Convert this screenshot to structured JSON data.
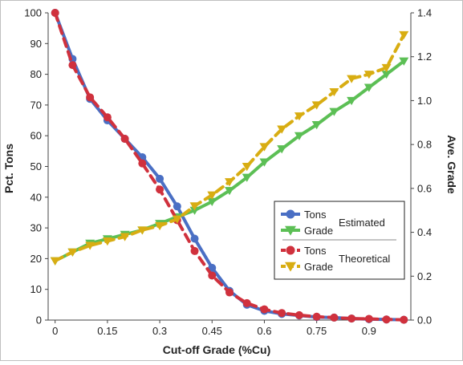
{
  "chart_data": {
    "type": "line",
    "title": "",
    "xlabel": "Cut-off Grade (%Cu)",
    "ylabel_left": "Pct. Tons",
    "ylabel_right": "Ave. Grade",
    "xlim": [
      -0.02,
      1.02
    ],
    "ylim_left": [
      0,
      100
    ],
    "ylim_right": [
      0,
      1.4
    ],
    "xticks": [
      "0",
      "0.15",
      "0.3",
      "0.45",
      "0.6",
      "0.75",
      "0.9"
    ],
    "xtick_values": [
      0,
      0.15,
      0.3,
      0.45,
      0.6,
      0.75,
      0.9
    ],
    "yticks_left": [
      "0",
      "10",
      "20",
      "30",
      "40",
      "50",
      "60",
      "70",
      "80",
      "90",
      "100"
    ],
    "yticks_right": [
      "0.0",
      "0.2",
      "0.4",
      "0.6",
      "0.8",
      "1.0",
      "1.2",
      "1.4"
    ],
    "grid": false,
    "legend": {
      "placement": "right-center",
      "groups": [
        {
          "label": "Estimated",
          "items": [
            "Tons",
            "Grade"
          ]
        },
        {
          "label": "Theoretical",
          "items": [
            "Tons",
            "Grade"
          ]
        }
      ]
    },
    "x": [
      0,
      0.05,
      0.1,
      0.15,
      0.2,
      0.25,
      0.3,
      0.35,
      0.4,
      0.45,
      0.5,
      0.55,
      0.6,
      0.65,
      0.7,
      0.75,
      0.8,
      0.85,
      0.9,
      0.95,
      1.0
    ],
    "series": [
      {
        "name": "Tons",
        "group": "Estimated",
        "axis": "left",
        "color": "#4a6fc4",
        "marker": "circle",
        "dash": false,
        "values": [
          100,
          85,
          72,
          65,
          59,
          53,
          46,
          37,
          26.5,
          17,
          9.5,
          5,
          3,
          2,
          1.5,
          1,
          0.8,
          0.5,
          0.3,
          0.2,
          0.1
        ]
      },
      {
        "name": "Grade",
        "group": "Estimated",
        "axis": "right",
        "color": "#5cbf55",
        "marker": "triangle",
        "dash": false,
        "values": [
          0.27,
          0.31,
          0.35,
          0.37,
          0.39,
          0.41,
          0.44,
          0.47,
          0.5,
          0.54,
          0.59,
          0.65,
          0.72,
          0.78,
          0.84,
          0.89,
          0.95,
          1.0,
          1.06,
          1.12,
          1.18
        ]
      },
      {
        "name": "Tons",
        "group": "Theoretical",
        "axis": "left",
        "color": "#d0313d",
        "marker": "circle",
        "dash": true,
        "values": [
          100,
          83,
          72.5,
          66,
          59,
          51,
          42.5,
          32.5,
          22.5,
          14.5,
          9,
          5.5,
          3.5,
          2.3,
          1.6,
          1.1,
          0.8,
          0.5,
          0.4,
          0.2,
          0.1
        ]
      },
      {
        "name": "Grade",
        "group": "Theoretical",
        "axis": "right",
        "color": "#d8ad12",
        "marker": "triangle",
        "dash": true,
        "values": [
          0.27,
          0.31,
          0.34,
          0.36,
          0.38,
          0.41,
          0.43,
          0.46,
          0.52,
          0.57,
          0.63,
          0.7,
          0.79,
          0.87,
          0.93,
          0.98,
          1.04,
          1.1,
          1.12,
          1.15,
          1.3
        ]
      }
    ]
  }
}
